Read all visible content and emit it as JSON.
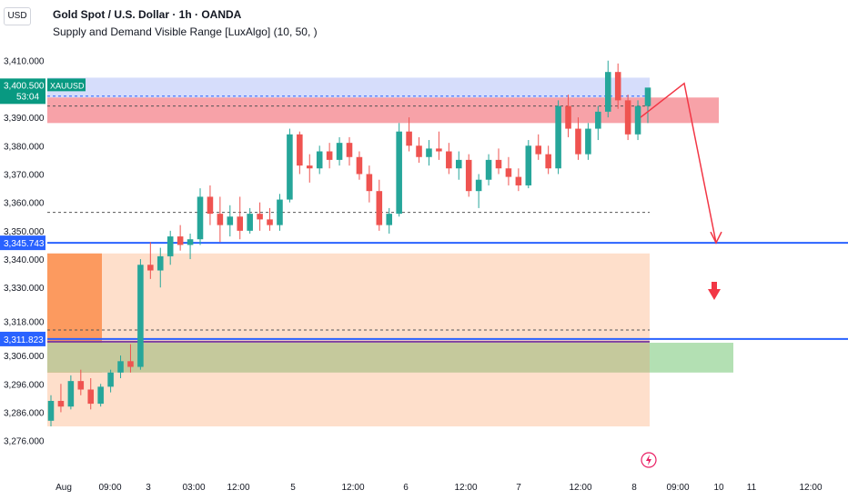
{
  "header": {
    "currency_button": "USD",
    "symbol_title": "Gold Spot / U.S. Dollar · 1h · OANDA",
    "indicator_title": "Supply and Demand Visible Range [LuxAlgo] (10, 50, )"
  },
  "colors": {
    "up": "#26a69a",
    "down": "#ef5350",
    "line_blue": "#2962ff",
    "supply_zone": "#f7a2a8",
    "upper_zone": "#d6ddfb",
    "demand_zone": "#fedfcb",
    "demand_block": "#fc9a5f",
    "green_zone": "#c5c99c",
    "green_zone_ext": "#b3e0b3",
    "projection": "#f23645",
    "price_badge": "#089981"
  },
  "price_axis": {
    "ticks": [
      "3,410.000",
      "3,390.000",
      "3,380.000",
      "3,370.000",
      "3,360.000",
      "3,350.000",
      "3,340.000",
      "3,330.000",
      "3,318.000",
      "3,306.000",
      "3,296.000",
      "3,286.000",
      "3,276.000"
    ],
    "tick_values": [
      3410,
      3390,
      3380,
      3370,
      3360,
      3350,
      3340,
      3330,
      3318,
      3306,
      3296,
      3286,
      3276
    ],
    "current_price": "3,400.500",
    "countdown": "53:04",
    "symbol_tag": "XAUUSD",
    "level_1": "3,345.743",
    "level_2": "3,311.823"
  },
  "time_axis": {
    "labels": [
      "Aug",
      "09:00",
      "3",
      "03:00",
      "12:00",
      "5",
      "12:00",
      "6",
      "12:00",
      "7",
      "12:00",
      "8",
      "09:00",
      "10",
      "11",
      "12:00"
    ]
  },
  "chart_data": {
    "type": "candlestick",
    "title": "Gold Spot / U.S. Dollar · 1h · OANDA",
    "xlabel": "",
    "ylabel": "",
    "ylim": [
      3273,
      3416
    ],
    "grid": false,
    "levels": [
      3345.743,
      3311.823
    ],
    "zones": {
      "upper": [
        3396.5,
        3404
      ],
      "supply": [
        3388,
        3397
      ],
      "demand": [
        3281,
        3342
      ],
      "demand_block": [
        3300,
        3342
      ],
      "green": [
        3300,
        3310.5
      ]
    },
    "ohlc_sample": [
      [
        3283,
        3292,
        3281,
        3290
      ],
      [
        3290,
        3296,
        3286,
        3288
      ],
      [
        3288,
        3299,
        3287,
        3297
      ],
      [
        3297,
        3301,
        3292,
        3294
      ],
      [
        3294,
        3298,
        3287,
        3289
      ],
      [
        3289,
        3296,
        3288,
        3295
      ],
      [
        3295,
        3301,
        3293,
        3300
      ],
      [
        3300,
        3306,
        3298,
        3304
      ],
      [
        3304,
        3310,
        3300,
        3302
      ],
      [
        3302,
        3340,
        3301,
        3338
      ],
      [
        3338,
        3346,
        3333,
        3336
      ],
      [
        3336,
        3344,
        3330,
        3341
      ],
      [
        3341,
        3350,
        3338,
        3348
      ],
      [
        3348,
        3352,
        3343,
        3345
      ],
      [
        3345,
        3349,
        3340,
        3347
      ],
      [
        3347,
        3365,
        3345,
        3362
      ],
      [
        3362,
        3366,
        3352,
        3356
      ],
      [
        3356,
        3362,
        3346,
        3352
      ],
      [
        3352,
        3359,
        3348,
        3355
      ],
      [
        3355,
        3362,
        3347,
        3350
      ],
      [
        3350,
        3358,
        3349,
        3356
      ],
      [
        3356,
        3360,
        3350,
        3354
      ],
      [
        3354,
        3358,
        3350,
        3352
      ],
      [
        3352,
        3363,
        3350,
        3361
      ],
      [
        3361,
        3386,
        3360,
        3384
      ],
      [
        3384,
        3385,
        3370,
        3373
      ],
      [
        3373,
        3377,
        3367,
        3372
      ],
      [
        3372,
        3380,
        3370,
        3378
      ],
      [
        3378,
        3381,
        3372,
        3375
      ],
      [
        3375,
        3383,
        3373,
        3381
      ],
      [
        3381,
        3383,
        3373,
        3376
      ],
      [
        3376,
        3378,
        3368,
        3370
      ],
      [
        3370,
        3373,
        3360,
        3364
      ],
      [
        3364,
        3368,
        3350,
        3352
      ],
      [
        3352,
        3358,
        3349,
        3356
      ],
      [
        3356,
        3388,
        3355,
        3385
      ],
      [
        3385,
        3390,
        3378,
        3380
      ],
      [
        3380,
        3383,
        3374,
        3376
      ],
      [
        3376,
        3382,
        3373,
        3379
      ],
      [
        3379,
        3385,
        3375,
        3378
      ],
      [
        3378,
        3381,
        3370,
        3372
      ],
      [
        3372,
        3378,
        3368,
        3375
      ],
      [
        3375,
        3377,
        3362,
        3364
      ],
      [
        3364,
        3370,
        3358,
        3368
      ],
      [
        3368,
        3377,
        3366,
        3375
      ],
      [
        3375,
        3379,
        3370,
        3372
      ],
      [
        3372,
        3376,
        3366,
        3369
      ],
      [
        3369,
        3372,
        3364,
        3366
      ],
      [
        3366,
        3382,
        3365,
        3380
      ],
      [
        3380,
        3384,
        3375,
        3377
      ],
      [
        3377,
        3380,
        3370,
        3372
      ],
      [
        3372,
        3396,
        3370,
        3394
      ],
      [
        3394,
        3398,
        3383,
        3386
      ],
      [
        3386,
        3390,
        3375,
        3377
      ],
      [
        3377,
        3388,
        3375,
        3386
      ],
      [
        3386,
        3394,
        3382,
        3392
      ],
      [
        3392,
        3410,
        3390,
        3406
      ],
      [
        3406,
        3409,
        3393,
        3396
      ],
      [
        3396,
        3398,
        3382,
        3384
      ],
      [
        3384,
        3396,
        3382,
        3394
      ],
      [
        3394,
        3400,
        3388,
        3400.5
      ]
    ],
    "current_price": 3400.5
  }
}
